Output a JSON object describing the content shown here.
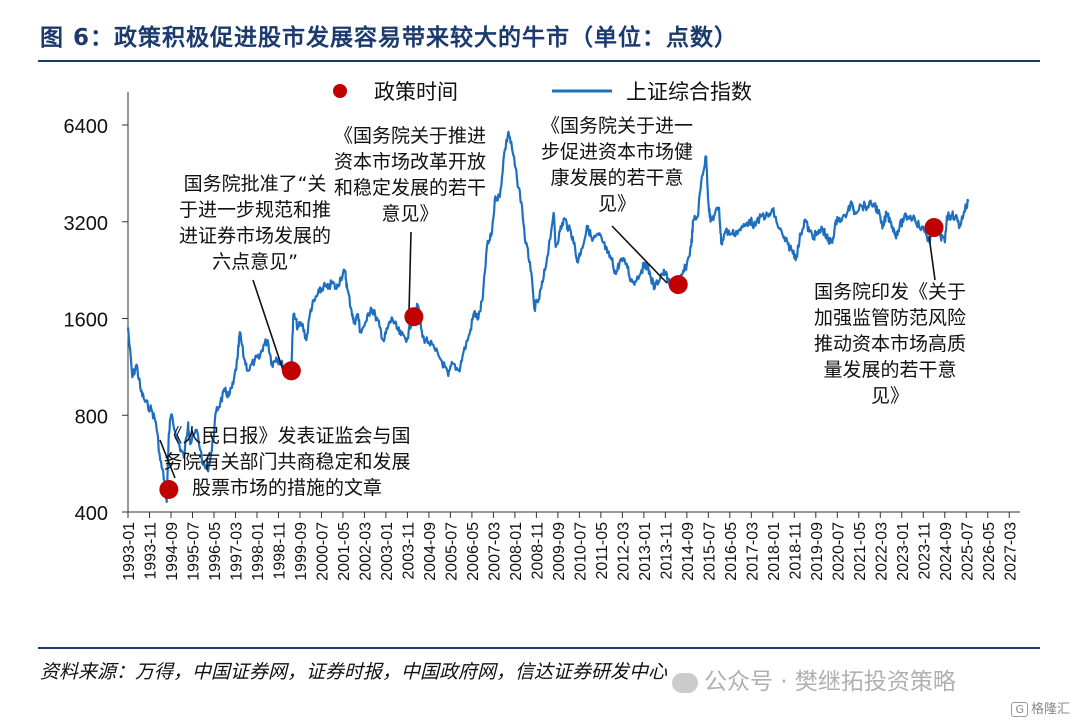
{
  "title": "图 6：政策积极促进股市发展容易带来较大的牛市（单位：点数）",
  "source": "资料来源：万得，中国证券网，证券时报，中国政府网，信达证券研发中心",
  "watermark": "公众号 · 樊继拓投资策略",
  "corner_badge": "G",
  "corner_text": "格隆汇",
  "colors": {
    "line": "#1f6fc1",
    "marker": "#c00000",
    "title": "#1b3b6f"
  },
  "chart_data": {
    "type": "line",
    "title": "",
    "xlabel": "",
    "ylabel": "",
    "yscale": "log",
    "ylim": [
      400,
      6400
    ],
    "yticks": [
      400,
      800,
      1600,
      3200,
      6400
    ],
    "xlim": [
      "1993-01",
      "2027-08"
    ],
    "xtick_labels": [
      "1993-01",
      "1993-11",
      "1994-09",
      "1995-07",
      "1996-05",
      "1997-03",
      "1998-01",
      "1998-11",
      "1999-09",
      "2000-07",
      "2001-05",
      "2002-03",
      "2003-01",
      "2003-11",
      "2004-09",
      "2005-07",
      "2006-05",
      "2007-03",
      "2008-01",
      "2008-11",
      "2009-09",
      "2010-07",
      "2011-05",
      "2012-03",
      "2013-01",
      "2013-11",
      "2014-09",
      "2015-07",
      "2016-05",
      "2017-03",
      "2018-01",
      "2018-11",
      "2019-09",
      "2020-07",
      "2021-05",
      "2022-03",
      "2023-01",
      "2023-11",
      "2024-09",
      "2025-07",
      "2026-05",
      "2027-03"
    ],
    "grid": false,
    "legend_position": "top-center",
    "legend": [
      {
        "label": "政策时间",
        "kind": "marker"
      },
      {
        "label": "上证综合指数",
        "kind": "line"
      }
    ],
    "series": [
      {
        "name": "上证综合指数",
        "points": [
          [
            "1993-01",
            1500
          ],
          [
            "1993-03",
            1050
          ],
          [
            "1993-05",
            1150
          ],
          [
            "1993-07",
            950
          ],
          [
            "1993-09",
            880
          ],
          [
            "1993-12",
            830
          ],
          [
            "1994-02",
            760
          ],
          [
            "1994-04",
            580
          ],
          [
            "1994-06",
            500
          ],
          [
            "1994-07",
            430
          ],
          [
            "1994-08",
            700
          ],
          [
            "1994-09",
            800
          ],
          [
            "1994-11",
            710
          ],
          [
            "1995-01",
            640
          ],
          [
            "1995-03",
            590
          ],
          [
            "1995-05",
            760
          ],
          [
            "1995-06",
            650
          ],
          [
            "1995-09",
            720
          ],
          [
            "1995-12",
            560
          ],
          [
            "1996-02",
            540
          ],
          [
            "1996-04",
            620
          ],
          [
            "1996-06",
            820
          ],
          [
            "1996-08",
            880
          ],
          [
            "1996-10",
            950
          ],
          [
            "1996-12",
            920
          ],
          [
            "1997-02",
            1000
          ],
          [
            "1997-04",
            1200
          ],
          [
            "1997-05",
            1450
          ],
          [
            "1997-07",
            1200
          ],
          [
            "1997-09",
            1100
          ],
          [
            "1997-12",
            1190
          ],
          [
            "1998-02",
            1200
          ],
          [
            "1998-04",
            1320
          ],
          [
            "1998-06",
            1370
          ],
          [
            "1998-08",
            1150
          ],
          [
            "1998-10",
            1210
          ],
          [
            "1998-12",
            1170
          ],
          [
            "1999-02",
            1110
          ],
          [
            "1999-04",
            1100
          ],
          [
            "1999-05",
            1150
          ],
          [
            "1999-06",
            1650
          ],
          [
            "1999-08",
            1500
          ],
          [
            "1999-10",
            1540
          ],
          [
            "1999-12",
            1370
          ],
          [
            "2000-02",
            1710
          ],
          [
            "2000-04",
            1830
          ],
          [
            "2000-06",
            1930
          ],
          [
            "2000-08",
            2020
          ],
          [
            "2000-10",
            1980
          ],
          [
            "2000-12",
            2070
          ],
          [
            "2001-02",
            1980
          ],
          [
            "2001-04",
            2150
          ],
          [
            "2001-06",
            2240
          ],
          [
            "2001-07",
            1980
          ],
          [
            "2001-09",
            1700
          ],
          [
            "2001-10",
            1550
          ],
          [
            "2001-12",
            1650
          ],
          [
            "2002-01",
            1450
          ],
          [
            "2002-04",
            1570
          ],
          [
            "2002-06",
            1730
          ],
          [
            "2002-08",
            1640
          ],
          [
            "2002-10",
            1510
          ],
          [
            "2002-12",
            1360
          ],
          [
            "2003-02",
            1510
          ],
          [
            "2003-04",
            1600
          ],
          [
            "2003-06",
            1490
          ],
          [
            "2003-08",
            1420
          ],
          [
            "2003-11",
            1390
          ],
          [
            "2004-01",
            1590
          ],
          [
            "2004-04",
            1750
          ],
          [
            "2004-06",
            1400
          ],
          [
            "2004-09",
            1350
          ],
          [
            "2004-12",
            1270
          ],
          [
            "2005-03",
            1180
          ],
          [
            "2005-06",
            1060
          ],
          [
            "2005-08",
            1160
          ],
          [
            "2005-11",
            1100
          ],
          [
            "2006-01",
            1250
          ],
          [
            "2006-04",
            1440
          ],
          [
            "2006-06",
            1670
          ],
          [
            "2006-08",
            1600
          ],
          [
            "2006-10",
            1840
          ],
          [
            "2006-12",
            2670
          ],
          [
            "2007-02",
            2890
          ],
          [
            "2007-04",
            3840
          ],
          [
            "2007-06",
            3820
          ],
          [
            "2007-08",
            5200
          ],
          [
            "2007-10",
            6100
          ],
          [
            "2007-12",
            5260
          ],
          [
            "2008-02",
            4350
          ],
          [
            "2008-04",
            3690
          ],
          [
            "2008-06",
            2740
          ],
          [
            "2008-08",
            2400
          ],
          [
            "2008-10",
            1730
          ],
          [
            "2008-12",
            1820
          ],
          [
            "2009-02",
            2080
          ],
          [
            "2009-04",
            2480
          ],
          [
            "2009-07",
            3410
          ],
          [
            "2009-08",
            2670
          ],
          [
            "2009-10",
            2990
          ],
          [
            "2009-12",
            3280
          ],
          [
            "2010-02",
            3050
          ],
          [
            "2010-04",
            2870
          ],
          [
            "2010-06",
            2400
          ],
          [
            "2010-08",
            2640
          ],
          [
            "2010-11",
            3100
          ],
          [
            "2011-01",
            2790
          ],
          [
            "2011-04",
            2910
          ],
          [
            "2011-06",
            2760
          ],
          [
            "2011-08",
            2560
          ],
          [
            "2011-10",
            2440
          ],
          [
            "2011-12",
            2200
          ],
          [
            "2012-02",
            2430
          ],
          [
            "2012-05",
            2370
          ],
          [
            "2012-07",
            2100
          ],
          [
            "2012-09",
            2090
          ],
          [
            "2012-12",
            2270
          ],
          [
            "2013-02",
            2380
          ],
          [
            "2013-04",
            2180
          ],
          [
            "2013-06",
            1980
          ],
          [
            "2013-09",
            2200
          ],
          [
            "2013-11",
            2220
          ],
          [
            "2014-01",
            2030
          ],
          [
            "2014-03",
            2030
          ],
          [
            "2014-05",
            2040
          ],
          [
            "2014-07",
            2200
          ],
          [
            "2014-09",
            2360
          ],
          [
            "2014-11",
            2680
          ],
          [
            "2014-12",
            3230
          ],
          [
            "2015-02",
            3310
          ],
          [
            "2015-04",
            4440
          ],
          [
            "2015-06",
            5100
          ],
          [
            "2015-07",
            3700
          ],
          [
            "2015-08",
            3200
          ],
          [
            "2015-10",
            3380
          ],
          [
            "2015-12",
            3540
          ],
          [
            "2016-01",
            2740
          ],
          [
            "2016-03",
            3000
          ],
          [
            "2016-06",
            2930
          ],
          [
            "2016-09",
            3000
          ],
          [
            "2016-12",
            3100
          ],
          [
            "2017-02",
            3240
          ],
          [
            "2017-05",
            3110
          ],
          [
            "2017-08",
            3360
          ],
          [
            "2017-11",
            3320
          ],
          [
            "2018-01",
            3480
          ],
          [
            "2018-03",
            3160
          ],
          [
            "2018-06",
            2850
          ],
          [
            "2018-08",
            2720
          ],
          [
            "2018-10",
            2600
          ],
          [
            "2018-12",
            2490
          ],
          [
            "2019-02",
            2940
          ],
          [
            "2019-04",
            3250
          ],
          [
            "2019-06",
            2980
          ],
          [
            "2019-08",
            2890
          ],
          [
            "2019-10",
            2930
          ],
          [
            "2019-12",
            3050
          ],
          [
            "2020-02",
            2880
          ],
          [
            "2020-03",
            2750
          ],
          [
            "2020-05",
            2850
          ],
          [
            "2020-07",
            3310
          ],
          [
            "2020-09",
            3220
          ],
          [
            "2020-12",
            3470
          ],
          [
            "2021-02",
            3650
          ],
          [
            "2021-03",
            3440
          ],
          [
            "2021-06",
            3590
          ],
          [
            "2021-09",
            3570
          ],
          [
            "2021-12",
            3640
          ],
          [
            "2022-02",
            3460
          ],
          [
            "2022-04",
            3050
          ],
          [
            "2022-06",
            3400
          ],
          [
            "2022-08",
            3200
          ],
          [
            "2022-10",
            2900
          ],
          [
            "2022-12",
            3090
          ],
          [
            "2023-02",
            3280
          ],
          [
            "2023-04",
            3320
          ],
          [
            "2023-07",
            3290
          ],
          [
            "2023-09",
            3110
          ],
          [
            "2023-12",
            2970
          ],
          [
            "2024-02",
            2750
          ],
          [
            "2024-04",
            3100
          ],
          [
            "2024-05",
            3150
          ],
          [
            "2024-07",
            2900
          ],
          [
            "2024-09",
            2760
          ],
          [
            "2024-10",
            3330
          ],
          [
            "2024-12",
            3350
          ],
          [
            "2025-02",
            3320
          ],
          [
            "2025-04",
            3100
          ],
          [
            "2025-06",
            3450
          ],
          [
            "2025-08",
            3700
          ]
        ]
      }
    ],
    "policy_points": [
      {
        "x": "1994-08",
        "y": 470
      },
      {
        "x": "1999-05",
        "y": 1100
      },
      {
        "x": "2004-02",
        "y": 1620
      },
      {
        "x": "2014-05",
        "y": 2040
      },
      {
        "x": "2024-04",
        "y": 3070
      }
    ],
    "annotations": [
      {
        "lines": [
          "《人民日报》发表证监会与国",
          "务院有关部门共商稳定和发展",
          "股票市场的措施的文章"
        ]
      },
      {
        "lines": [
          "国务院批准了“关",
          "于进一步规范和推",
          "进证券市场发展的",
          "六点意见”"
        ]
      },
      {
        "lines": [
          "《国务院关于推进",
          "资本市场改革开放",
          "和稳定发展的若干",
          "意见》"
        ]
      },
      {
        "lines": [
          "《国务院关于进一",
          "步促进资本市场健",
          "康发展的若干意",
          "见》"
        ]
      },
      {
        "lines": [
          "国务院印发《关于",
          "加强监管防范风险",
          "推动资本市场高质",
          "量发展的若干意",
          "见》"
        ]
      }
    ]
  }
}
